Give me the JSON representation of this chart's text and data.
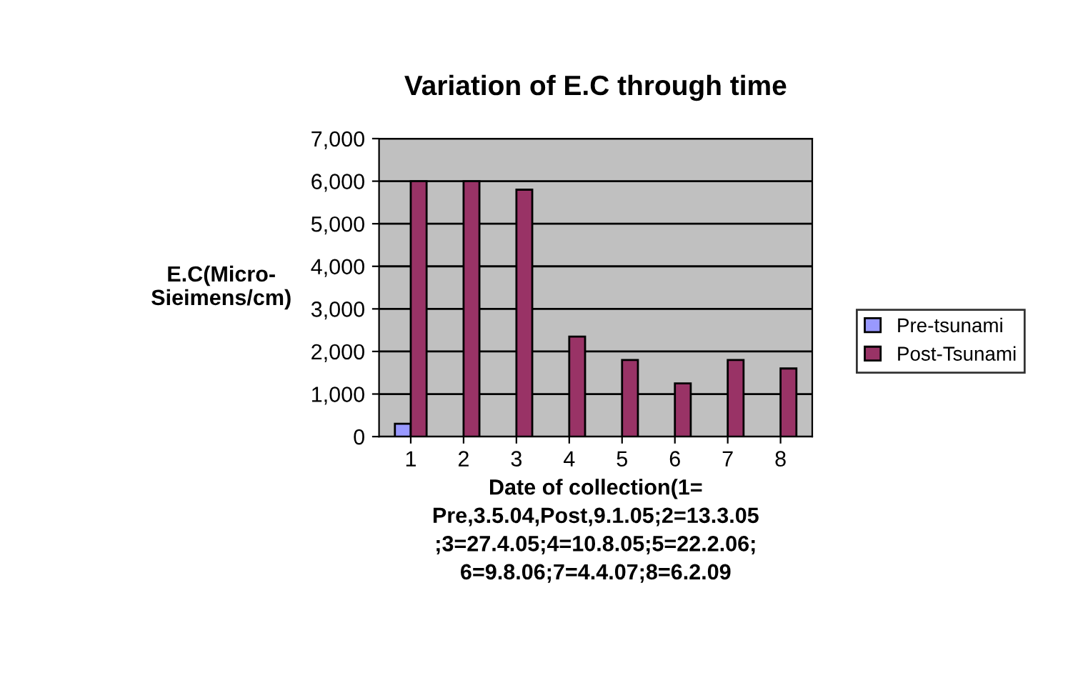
{
  "chart_data": {
    "type": "bar",
    "title": "Variation of E.C through time",
    "xlabel": "Date of collection(1=\nPre,3.5.04,Post,9.1.05;2=13.3.05\n;3=27.4.05;4=10.8.05;5=22.2.06;\n6=9.8.06;7=4.4.07;8=6.2.09",
    "ylabel": "E.C(Micro-\nSieimens/cm)",
    "categories": [
      "1",
      "2",
      "3",
      "4",
      "5",
      "6",
      "7",
      "8"
    ],
    "series": [
      {
        "name": "Pre-tsunami",
        "color": "#9999ff",
        "values": [
          300,
          null,
          null,
          null,
          null,
          null,
          null,
          null
        ]
      },
      {
        "name": "Post-Tsunami",
        "color": "#993366",
        "values": [
          6000,
          6000,
          5800,
          2350,
          1800,
          1250,
          1800,
          1600
        ]
      }
    ],
    "ylim": [
      0,
      7000
    ],
    "yticks": [
      {
        "value": 0,
        "label": "0"
      },
      {
        "value": 1000,
        "label": "1,000"
      },
      {
        "value": 2000,
        "label": "2,000"
      },
      {
        "value": 3000,
        "label": "3,000"
      },
      {
        "value": 4000,
        "label": "4,000"
      },
      {
        "value": 5000,
        "label": "5,000"
      },
      {
        "value": 6000,
        "label": "6,000"
      },
      {
        "value": 7000,
        "label": "7,000"
      }
    ],
    "grid": "y",
    "legend": "right"
  }
}
